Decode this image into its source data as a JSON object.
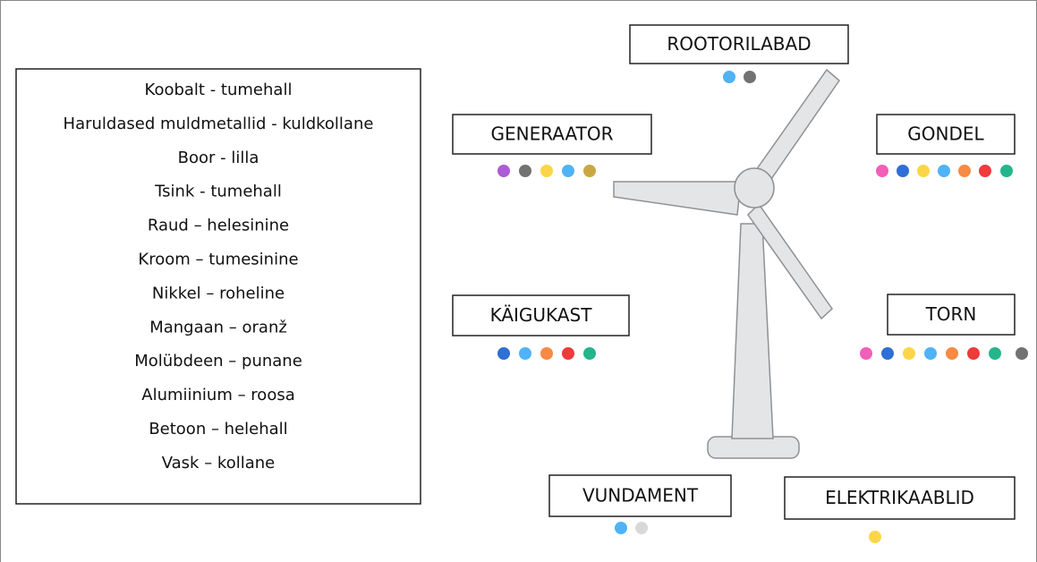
{
  "legend": {
    "items": [
      "Koobalt - tumehall",
      "Haruldased muldmetallid - kuldkollane",
      "Boor - lilla",
      "Tsink - tumehall",
      "Raud – helesinine",
      "Kroom – tumesinine",
      "Nikkel – roheline",
      "Mangaan – oranž",
      "Molübdeen – punane",
      "Alumiinium – roosa",
      "Betoon – helehall",
      "Vask – kollane"
    ]
  },
  "components": [
    {
      "label": "ROOTORILABAD"
    },
    {
      "label": "GENERAATOR"
    },
    {
      "label": "GONDEL"
    },
    {
      "label": "KÄIGUKAST"
    },
    {
      "label": "TORN"
    },
    {
      "label": "VUNDAMENT"
    },
    {
      "label": "ELEKTRIKAABLID"
    }
  ]
}
